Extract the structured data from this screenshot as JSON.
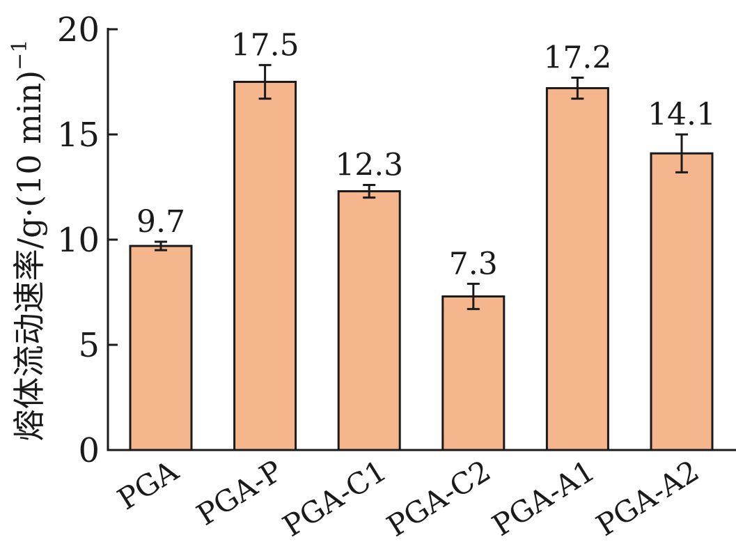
{
  "chart_data": {
    "type": "bar",
    "title": "",
    "xlabel": "",
    "ylabel": "熔体流动速率/g·(10 min)",
    "ylabel_superscript": "−1",
    "categories": [
      "PGA",
      "PGA-P",
      "PGA-C1",
      "PGA-C2",
      "PGA-A1",
      "PGA-A2"
    ],
    "values": [
      9.7,
      17.5,
      12.3,
      7.3,
      17.2,
      14.1
    ],
    "value_labels": [
      "9.7",
      "17.5",
      "12.3",
      "7.3",
      "17.2",
      "14.1"
    ],
    "error": [
      0.2,
      0.8,
      0.3,
      0.6,
      0.5,
      0.9
    ],
    "ylim": [
      0,
      20
    ],
    "yticks": [
      0,
      5,
      10,
      15,
      20
    ],
    "ytick_labels": [
      "0",
      "5",
      "10",
      "15",
      "20"
    ],
    "grid": false,
    "legend": "none",
    "colors": {
      "bar_fill": "#F5B68E",
      "bar_stroke": "#1a1a1a",
      "axis": "#1a1a1a"
    }
  }
}
